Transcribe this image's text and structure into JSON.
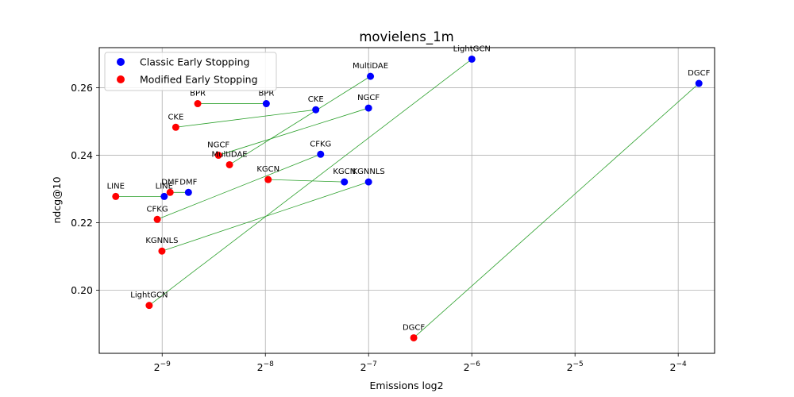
{
  "chart_data": {
    "type": "scatter",
    "title": "movielens_1m",
    "xlabel": "Emissions log2",
    "ylabel": "ndcg@10",
    "x_scale": "log2",
    "xlim": [
      0.00128,
      0.0798
    ],
    "ylim": [
      0.1813,
      0.2719
    ],
    "x_ticks": [
      {
        "value": 0.001953125,
        "base": "2",
        "exp": "−9"
      },
      {
        "value": 0.00390625,
        "base": "2",
        "exp": "−8"
      },
      {
        "value": 0.0078125,
        "base": "2",
        "exp": "−7"
      },
      {
        "value": 0.015625,
        "base": "2",
        "exp": "−6"
      },
      {
        "value": 0.03125,
        "base": "2",
        "exp": "−5"
      },
      {
        "value": 0.0625,
        "base": "2",
        "exp": "−4"
      }
    ],
    "y_ticks": [
      {
        "value": 0.2,
        "label": "0.20"
      },
      {
        "value": 0.22,
        "label": "0.22"
      },
      {
        "value": 0.24,
        "label": "0.24"
      },
      {
        "value": 0.26,
        "label": "0.26"
      }
    ],
    "grid": true,
    "legend_position": "top-left",
    "series": [
      {
        "name": "Classic Early Stopping",
        "color": "#0000ff",
        "points": [
          {
            "label": "LightGCN",
            "x": 0.01563,
            "y": 0.2685
          },
          {
            "label": "DGCF",
            "x": 0.07182,
            "y": 0.2613
          },
          {
            "label": "MultiDAE",
            "x": 0.00791,
            "y": 0.2634
          },
          {
            "label": "BPR",
            "x": 0.00393,
            "y": 0.2553
          },
          {
            "label": "CKE",
            "x": 0.00548,
            "y": 0.2535
          },
          {
            "label": "NGCF",
            "x": 0.00781,
            "y": 0.254
          },
          {
            "label": "CFKG",
            "x": 0.00566,
            "y": 0.2403
          },
          {
            "label": "KGCN",
            "x": 0.00664,
            "y": 0.2321
          },
          {
            "label": "KGNNLS",
            "x": 0.00781,
            "y": 0.2321
          },
          {
            "label": "DMF",
            "x": 0.00233,
            "y": 0.229
          },
          {
            "label": "LINE",
            "x": 0.00198,
            "y": 0.2278
          }
        ]
      },
      {
        "name": "Modified Early Stopping",
        "color": "#ff0000",
        "points": [
          {
            "label": "BPR",
            "x": 0.00248,
            "y": 0.2553
          },
          {
            "label": "CKE",
            "x": 0.00214,
            "y": 0.2483
          },
          {
            "label": "NGCF",
            "x": 0.00285,
            "y": 0.24
          },
          {
            "label": "MultiDAE",
            "x": 0.00307,
            "y": 0.2372
          },
          {
            "label": "KGCN",
            "x": 0.00398,
            "y": 0.2328
          },
          {
            "label": "DMF",
            "x": 0.00206,
            "y": 0.229
          },
          {
            "label": "LINE",
            "x": 0.00143,
            "y": 0.2278
          },
          {
            "label": "CFKG",
            "x": 0.00189,
            "y": 0.221
          },
          {
            "label": "KGNNLS",
            "x": 0.00195,
            "y": 0.2116
          },
          {
            "label": "LightGCN",
            "x": 0.00179,
            "y": 0.1955
          },
          {
            "label": "DGCF",
            "x": 0.01058,
            "y": 0.1859
          }
        ]
      }
    ],
    "connections": [
      {
        "classic": "LightGCN",
        "modified": "LightGCN"
      },
      {
        "classic": "DGCF",
        "modified": "DGCF"
      },
      {
        "classic": "MultiDAE",
        "modified": "MultiDAE"
      },
      {
        "classic": "BPR",
        "modified": "BPR"
      },
      {
        "classic": "CKE",
        "modified": "CKE"
      },
      {
        "classic": "NGCF",
        "modified": "NGCF"
      },
      {
        "classic": "CFKG",
        "modified": "CFKG"
      },
      {
        "classic": "KGCN",
        "modified": "KGCN"
      },
      {
        "classic": "KGNNLS",
        "modified": "KGNNLS"
      },
      {
        "classic": "DMF",
        "modified": "DMF"
      },
      {
        "classic": "LINE",
        "modified": "LINE"
      }
    ],
    "connection_color": "#2ca02c"
  }
}
